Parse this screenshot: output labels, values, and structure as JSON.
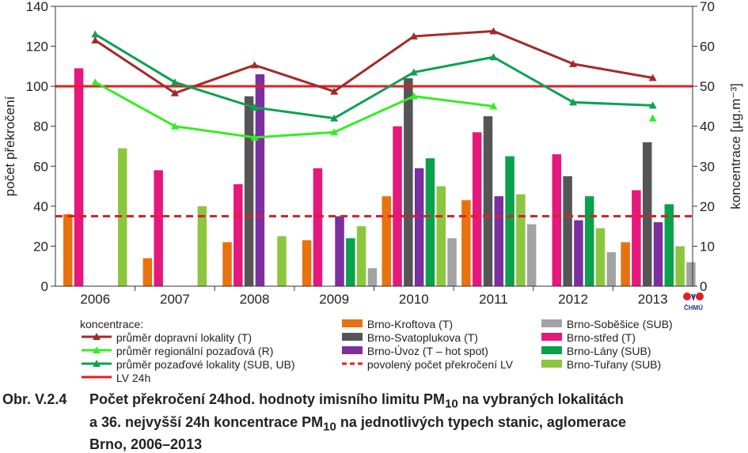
{
  "chart_data": {
    "type": "bar",
    "categories": [
      "2006",
      "2007",
      "2008",
      "2009",
      "2010",
      "2011",
      "2012",
      "2013"
    ],
    "ylabel_left": "počet překročení",
    "ylabel_right": "koncentrace [µg.m⁻³]",
    "ylim_left": [
      0,
      140
    ],
    "ylim_right": [
      0,
      70
    ],
    "yticks_left": [
      "0",
      "20",
      "40",
      "60",
      "80",
      "100",
      "120",
      "140"
    ],
    "yticks_right": [
      "0",
      "10",
      "20",
      "30",
      "40",
      "50",
      "60",
      "70"
    ],
    "bar_series": [
      {
        "name": "Brno-Kroftova (T)",
        "color": "#e8720e",
        "values": [
          36,
          14,
          22,
          23,
          45,
          43,
          null,
          22
        ]
      },
      {
        "name": "Brno-střed (T)",
        "color": "#e6177d",
        "values": [
          109,
          58,
          51,
          59,
          80,
          77,
          66,
          48
        ]
      },
      {
        "name": "Brno-Svatoplukova (T)",
        "color": "#555555",
        "values": [
          null,
          null,
          95,
          null,
          104,
          85,
          55,
          72
        ]
      },
      {
        "name": "Brno-Úvoz (T – hot spot)",
        "color": "#7b2fa0",
        "values": [
          null,
          null,
          106,
          35,
          59,
          45,
          33,
          32
        ]
      },
      {
        "name": "Brno-Lány (SUB)",
        "color": "#0aa14b",
        "values": [
          null,
          null,
          null,
          24,
          64,
          65,
          45,
          41
        ]
      },
      {
        "name": "Brno-Tuřany (SUB)",
        "color": "#8cc63f",
        "values": [
          69,
          40,
          25,
          30,
          50,
          46,
          29,
          20
        ]
      },
      {
        "name": "Brno-Soběšice (SUB)",
        "color": "#a3a3a3",
        "values": [
          null,
          null,
          null,
          9,
          24,
          31,
          17,
          12
        ]
      }
    ],
    "line_series": [
      {
        "name": "průměr dopravní lokality (T)",
        "color": "#a42a2a",
        "axis": "right",
        "values": [
          61.5,
          48.3,
          55.3,
          48.7,
          62.5,
          63.8,
          55.6,
          52.1
        ]
      },
      {
        "name": "průměr regionální pozaďová (R)",
        "color": "#33ee22",
        "axis": "right",
        "values": [
          51,
          40,
          37.2,
          38.5,
          47.5,
          45,
          null,
          null
        ],
        "extra_point": {
          "category": "2013",
          "value": 42
        }
      },
      {
        "name": "průměr pozaďové lokality (SUB, UB)",
        "color": "#0da152",
        "axis": "right",
        "values": [
          63,
          51,
          44.7,
          42,
          53.5,
          57.3,
          46,
          45.2
        ]
      }
    ],
    "reference_lines": [
      {
        "name": "LV 24h",
        "color": "#e31e24",
        "axis": "left",
        "value": 100,
        "style": "solid"
      },
      {
        "name": "povolený počet překročení LV",
        "color": "#e31e24",
        "axis": "left",
        "value": 35,
        "style": "dashed"
      }
    ],
    "legend_title": "koncentrace:"
  },
  "legend": {
    "title": "koncentrace:",
    "col1": [
      "průměr dopravní lokality (T)",
      "průměr regionální pozaďová (R)",
      "průměr pozaďové lokality (SUB, UB)",
      "LV 24h"
    ],
    "col2": [
      "Brno-Kroftova (T)",
      "Brno-Svatoplukova (T)",
      "Brno-Úvoz (T – hot spot)",
      "povolený počet překročení LV"
    ],
    "col3": [
      "Brno-Soběšice (SUB)",
      "Brno-střed (T)",
      "Brno-Lány (SUB)",
      "Brno-Tuřany (SUB)"
    ]
  },
  "caption": {
    "id": "Obr. V.2.4",
    "line1_a": "Počet překročení 24hod. hodnoty imisního limitu PM",
    "line1_sub": "10",
    "line1_b": " na vybraných lokalitách",
    "line2_a": "a 36. nejvyšší 24h koncentrace PM",
    "line2_sub": "10",
    "line2_b": " na jednotlivých typech stanic, aglomerace",
    "line3": "Brno, 2006–2013"
  },
  "logo": {
    "text": "ČHMÚ",
    "colors": [
      "#e31e24",
      "#1a3b8f"
    ]
  }
}
